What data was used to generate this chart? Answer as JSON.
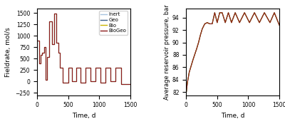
{
  "left_xlabel": "Time, d",
  "left_ylabel": "Fieldrate, mol/s",
  "right_xlabel": "Time, d",
  "right_ylabel": "Average reservoir pressure, bar",
  "legend_labels": [
    "Inert",
    "Geo",
    "Bio",
    "BioGeo"
  ],
  "legend_colors": [
    "#a8c4e0",
    "#3a5f8a",
    "#c8b400",
    "#8b1a1a"
  ],
  "biogeo_color": "#8b1a1a",
  "inert_color": "#a8c4e0",
  "geo_color": "#3a5f8a",
  "bio_color": "#c8b400",
  "left_xlim": [
    0,
    1500
  ],
  "left_ylim": [
    -300,
    1600
  ],
  "right_xlim": [
    0,
    1500
  ],
  "right_ylim": [
    81.5,
    95.5
  ],
  "left_yticks": [
    -250,
    0,
    250,
    500,
    750,
    1000,
    1250,
    1500
  ],
  "right_yticks": [
    82,
    84,
    86,
    88,
    90,
    92,
    94
  ],
  "fieldrate_time": [
    0,
    30,
    30,
    55,
    55,
    80,
    80,
    110,
    110,
    140,
    140,
    160,
    160,
    200,
    200,
    240,
    240,
    270,
    270,
    305,
    305,
    340,
    340,
    370,
    370,
    410,
    410,
    500,
    500,
    560,
    560,
    630,
    630,
    700,
    700,
    780,
    780,
    860,
    860,
    940,
    940,
    1020,
    1020,
    1100,
    1100,
    1180,
    1180,
    1260,
    1260,
    1350,
    1350,
    1500
  ],
  "fieldrate_values": [
    900,
    900,
    400,
    400,
    580,
    580,
    630,
    630,
    760,
    760,
    30,
    30,
    540,
    540,
    1310,
    1310,
    820,
    820,
    1490,
    1490,
    840,
    840,
    630,
    630,
    300,
    300,
    -30,
    -30,
    300,
    300,
    0,
    0,
    300,
    300,
    -30,
    -30,
    300,
    300,
    0,
    0,
    300,
    300,
    -30,
    -30,
    300,
    300,
    0,
    0,
    300,
    300,
    -50,
    -50
  ],
  "pressure_time": [
    0,
    20,
    50,
    80,
    110,
    140,
    170,
    200,
    230,
    260,
    300,
    340,
    380,
    420,
    460,
    500,
    540,
    580,
    630,
    680,
    730,
    790,
    860,
    940,
    1020,
    1100,
    1180,
    1260,
    1350,
    1420,
    1500
  ],
  "pressure_values": [
    81.7,
    83.5,
    85.2,
    86.2,
    87.2,
    88.1,
    89.0,
    90.0,
    91.2,
    92.2,
    93.0,
    93.2,
    93.0,
    93.0,
    94.8,
    93.2,
    94.8,
    94.8,
    93.2,
    94.8,
    93.2,
    94.8,
    93.2,
    94.8,
    93.2,
    94.8,
    93.2,
    94.8,
    93.2,
    94.8,
    92.8
  ]
}
